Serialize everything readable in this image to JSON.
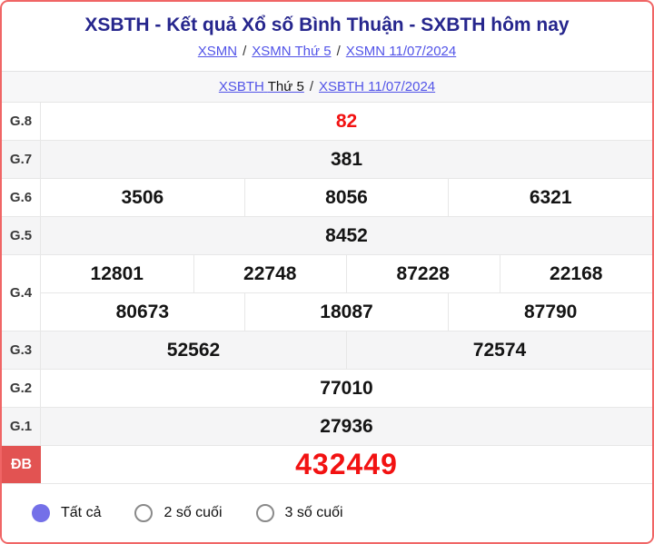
{
  "header": {
    "title": "XSBTH - Kết quả Xổ số Bình Thuận - SXBTH hôm nay",
    "sep": "/",
    "breadcrumb1": {
      "link1": "XSMN",
      "link2": "XSMN Thứ 5",
      "link3": "XSMN 11/07/2024"
    },
    "breadcrumb2": {
      "link1_part1": "XSBTH",
      "link1_part2": "Thứ 5",
      "link2": "XSBTH 11/07/2024"
    }
  },
  "results": {
    "rows": [
      {
        "key": "g8",
        "label": "G.8",
        "shade": "white",
        "value_class": "red",
        "cells": [
          "82"
        ]
      },
      {
        "key": "g7",
        "label": "G.7",
        "shade": "gray",
        "cells": [
          "381"
        ]
      },
      {
        "key": "g6",
        "label": "G.6",
        "shade": "white",
        "cells": [
          "3506",
          "8056",
          "6321"
        ]
      },
      {
        "key": "g5",
        "label": "G.5",
        "shade": "gray",
        "cells": [
          "8452"
        ]
      },
      {
        "key": "g4",
        "label": "G.4",
        "shade": "white",
        "sub_rows": [
          [
            "12801",
            "22748",
            "87228",
            "22168"
          ],
          [
            "80673",
            "18087",
            "87790"
          ]
        ]
      },
      {
        "key": "g3",
        "label": "G.3",
        "shade": "gray",
        "cells": [
          "52562",
          "72574"
        ]
      },
      {
        "key": "g2",
        "label": "G.2",
        "shade": "white",
        "cells": [
          "77010"
        ]
      },
      {
        "key": "g1",
        "label": "G.1",
        "shade": "gray",
        "cells": [
          "27936"
        ]
      },
      {
        "key": "db",
        "label": "ĐB",
        "shade": "white",
        "label_class": "db",
        "value_class": "red db-value",
        "cells": [
          "432449"
        ]
      }
    ]
  },
  "filters": {
    "options": [
      {
        "key": "all",
        "label": "Tất cả",
        "selected": true
      },
      {
        "key": "last-2",
        "label": "2 số cuối",
        "selected": false
      },
      {
        "key": "last-3",
        "label": "3 số cuối",
        "selected": false
      }
    ]
  },
  "colors": {
    "card_border": "#f06565",
    "title": "#26268d",
    "link": "#5254e8",
    "highlight_red": "#f21212",
    "db_label_bg": "#e25352",
    "row_alt_bg": "#f5f5f6",
    "radio_selected": "#7470e8"
  }
}
